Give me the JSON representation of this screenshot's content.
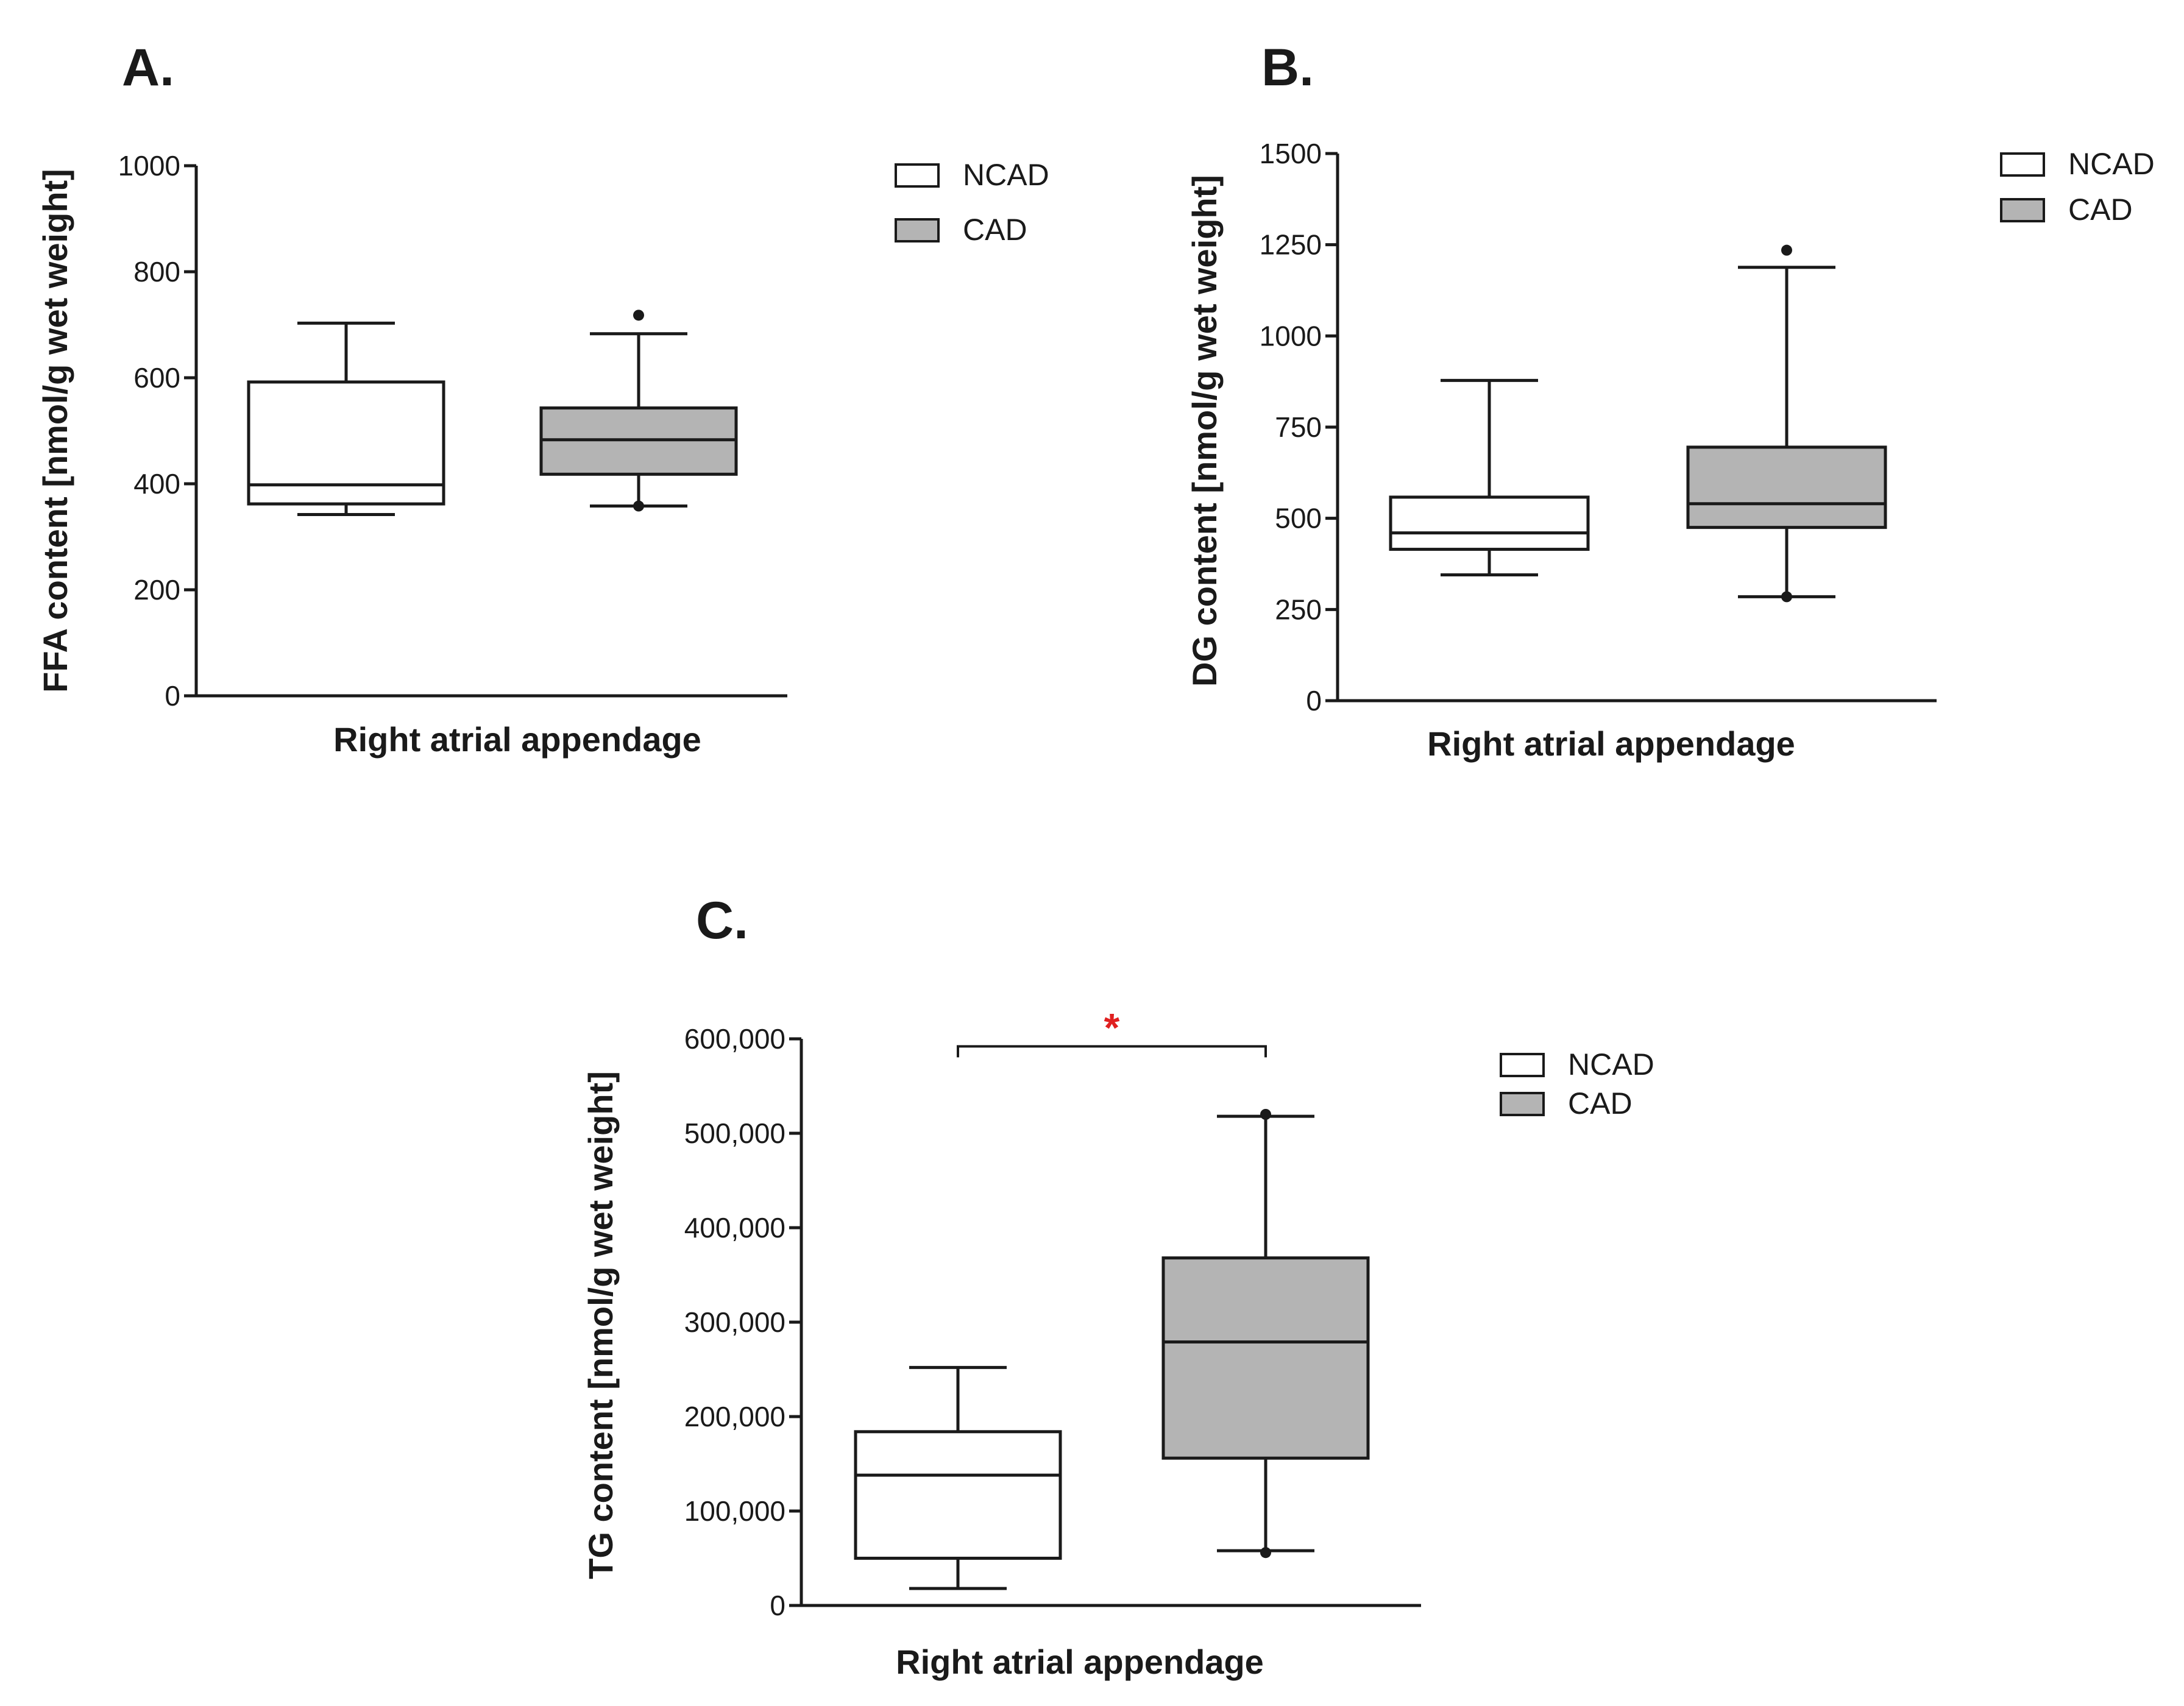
{
  "chart_data": [
    {
      "type": "box",
      "panel": "A.",
      "ylabel": "FFA content [nmol/g wet weight]",
      "xlabel": "Right atrial appendage",
      "ylim": [
        0,
        1000
      ],
      "yticks": [
        "0",
        "200",
        "400",
        "600",
        "800",
        "1000"
      ],
      "ytick_values": [
        0,
        200,
        400,
        600,
        800,
        1000
      ],
      "legend": [
        "NCAD",
        "CAD"
      ],
      "series": [
        {
          "name": "NCAD",
          "color": "#ffffff",
          "min": 342,
          "q1": 362,
          "median": 398,
          "q3": 592,
          "max": 703,
          "outliers": []
        },
        {
          "name": "CAD",
          "color": "#b4b4b4",
          "min": 358,
          "q1": 418,
          "median": 483,
          "q3": 543,
          "max": 683,
          "outliers": [
            718,
            358
          ]
        }
      ]
    },
    {
      "type": "box",
      "panel": "B.",
      "ylabel": "DG content [nmol/g wet weight]",
      "xlabel": "Right atrial appendage",
      "ylim": [
        0,
        1500
      ],
      "yticks": [
        "0",
        "250",
        "500",
        "750",
        "1000",
        "1250",
        "1500"
      ],
      "ytick_values": [
        0,
        250,
        500,
        750,
        1000,
        1250,
        1500
      ],
      "legend": [
        "NCAD",
        "CAD"
      ],
      "series": [
        {
          "name": "NCAD",
          "color": "#ffffff",
          "min": 345,
          "q1": 415,
          "median": 460,
          "q3": 558,
          "max": 878,
          "outliers": []
        },
        {
          "name": "CAD",
          "color": "#b4b4b4",
          "min": 285,
          "q1": 475,
          "median": 540,
          "q3": 695,
          "max": 1188,
          "outliers": [
            1235,
            285
          ]
        }
      ]
    },
    {
      "type": "box",
      "panel": "C.",
      "ylabel": "TG content [nmol/g wet weight]",
      "xlabel": "Right atrial appendage",
      "ylim": [
        0,
        600000
      ],
      "yticks": [
        "0",
        "100,000",
        "200,000",
        "300,000",
        "400,000",
        "500,000",
        "600,000"
      ],
      "ytick_values": [
        0,
        100000,
        200000,
        300000,
        400000,
        500000,
        600000
      ],
      "legend": [
        "NCAD",
        "CAD"
      ],
      "significance": {
        "label": "*",
        "color": "#e02020",
        "y": 592000
      },
      "series": [
        {
          "name": "NCAD",
          "color": "#ffffff",
          "min": 18000,
          "q1": 50000,
          "median": 138000,
          "q3": 184000,
          "max": 252000,
          "outliers": []
        },
        {
          "name": "CAD",
          "color": "#b4b4b4",
          "min": 58000,
          "q1": 156000,
          "median": 279000,
          "q3": 368000,
          "max": 518000,
          "outliers": [
            520000,
            56000
          ]
        }
      ]
    }
  ]
}
